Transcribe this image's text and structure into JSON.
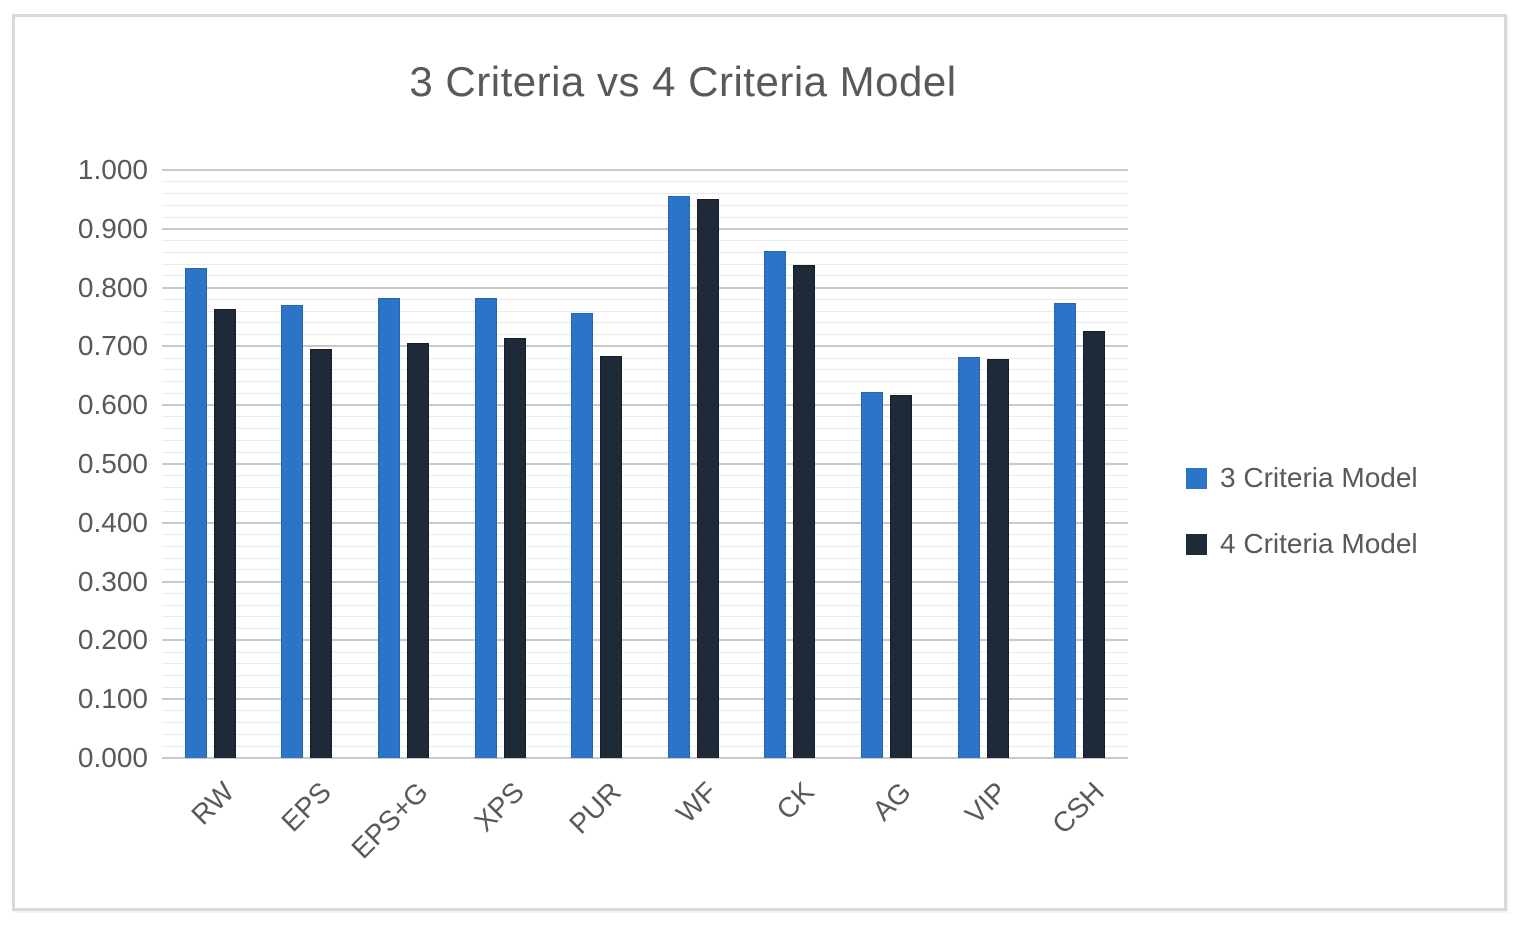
{
  "chart_data": {
    "type": "bar",
    "title": "3 Criteria vs 4 Criteria Model",
    "categories": [
      "RW",
      "EPS",
      "EPS+G",
      "XPS",
      "PUR",
      "WF",
      "CK",
      "AG",
      "VIP",
      "CSH"
    ],
    "series": [
      {
        "name": "3 Criteria Model",
        "color": "#2c74c8",
        "edge_color": "#2367b4",
        "values": [
          0.833,
          0.77,
          0.782,
          0.782,
          0.757,
          0.955,
          0.862,
          0.622,
          0.682,
          0.774
        ]
      },
      {
        "name": "4 Criteria Model",
        "color": "#1e2a38",
        "edge_color": "#141d28",
        "values": [
          0.764,
          0.696,
          0.706,
          0.714,
          0.683,
          0.951,
          0.838,
          0.617,
          0.679,
          0.727
        ]
      }
    ],
    "ylim": [
      0,
      1
    ],
    "ytick_step": 0.1,
    "yminor_step": 0.02,
    "ytick_labels": [
      "0.000",
      "0.100",
      "0.200",
      "0.300",
      "0.400",
      "0.500",
      "0.600",
      "0.700",
      "0.800",
      "0.900",
      "1.000"
    ],
    "grid": "horizontal, minor + major, no vertical",
    "legend_position": "right",
    "xlabel_rotation_deg": -45
  },
  "colors": {
    "title_text": "#595959",
    "axis_text": "#595959",
    "major_grid": "#c9c9c9",
    "minor_grid": "#ebebeb",
    "frame_border": "#d9d9d9",
    "background": "#ffffff"
  }
}
